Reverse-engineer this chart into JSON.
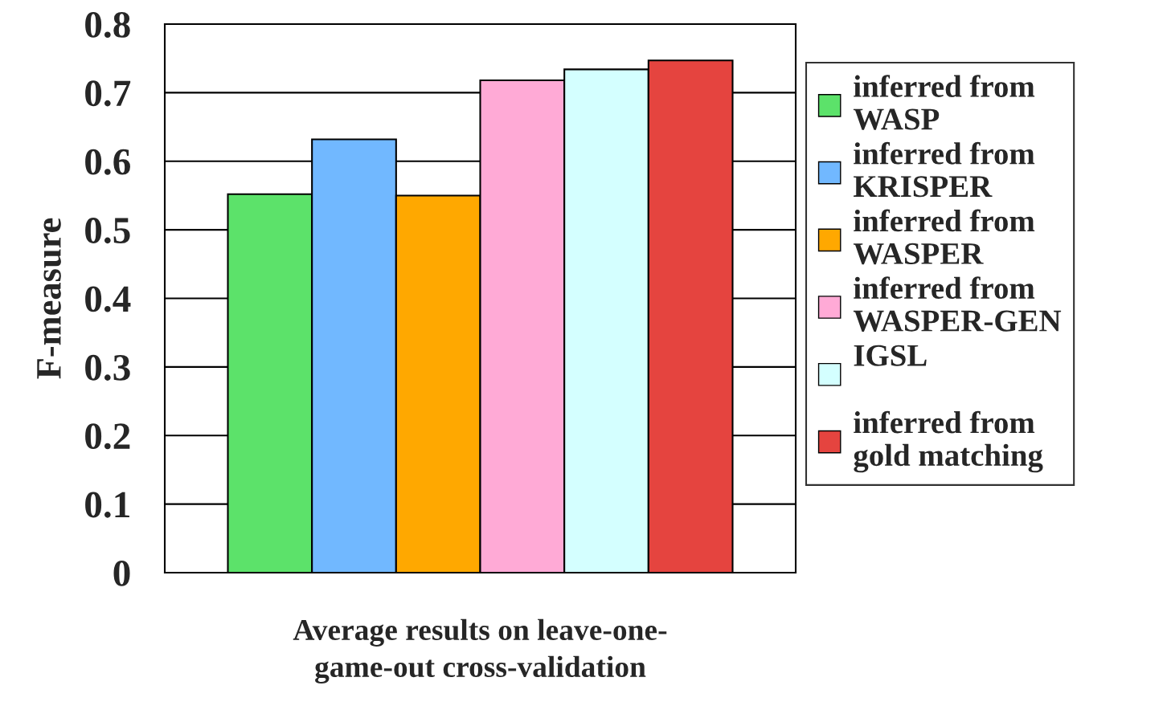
{
  "chart_data": {
    "type": "bar",
    "categories": [
      null
    ],
    "xlabel": "Average results on leave-one-\ngame-out cross-validation",
    "ylabel": "F-measure",
    "series": [
      {
        "name": "inferred from\nWASP",
        "color": "#5ce26a",
        "values": [
          0.552
        ]
      },
      {
        "name": "inferred from\nKRISPER",
        "color": "#71b8ff",
        "values": [
          0.632
        ]
      },
      {
        "name": "inferred from\nWASPER",
        "color": "#ffa800",
        "values": [
          0.55
        ]
      },
      {
        "name": "inferred from\nWASPER-GEN",
        "color": "#ffaad6",
        "values": [
          0.718
        ]
      },
      {
        "name": "IGSL\n",
        "color": "#d4ffff",
        "values": [
          0.734
        ]
      },
      {
        "name": "inferred from\ngold matching",
        "color": "#e5443f",
        "values": [
          0.747
        ]
      }
    ],
    "ylim": [
      0,
      0.8
    ],
    "yticks": [
      0,
      0.1,
      0.2,
      0.3,
      0.4,
      0.5,
      0.6,
      0.7,
      0.8
    ],
    "grid": "y",
    "legend": "right"
  }
}
